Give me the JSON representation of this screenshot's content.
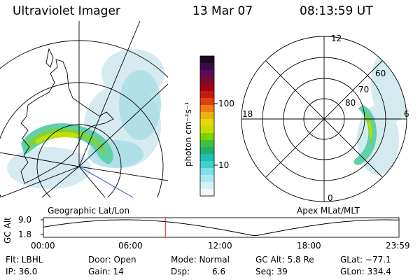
{
  "header": {
    "instrument": "Ultraviolet Imager",
    "date": "13 Mar 07",
    "time": "08:13:59 UT"
  },
  "colorbar": {
    "unit_label": "photon cm⁻²s⁻¹",
    "ticks": [
      "100",
      "10"
    ],
    "colors": [
      "#1a0a26",
      "#3b0a4a",
      "#5a0a5a",
      "#7a0a2a",
      "#a0001a",
      "#c81810",
      "#e04010",
      "#f07a10",
      "#f0b010",
      "#e8d800",
      "#c0e000",
      "#80d000",
      "#40c040",
      "#20b070",
      "#20c0b0",
      "#40d0d0",
      "#80e0e8",
      "#b0e8f0",
      "#d8f0f4",
      "#f0f8f8"
    ]
  },
  "left_panel": {
    "caption": "Geographic Lat/Lon"
  },
  "right_panel": {
    "caption": "Apex MLat/MLT",
    "mlt_labels": {
      "top": "12",
      "left": "18",
      "right": "6",
      "bottom": "0"
    },
    "lat_labels": [
      "60",
      "70",
      "80"
    ]
  },
  "timeline": {
    "ylabel": "GC Alt",
    "y_ticks": [
      "9.0",
      "1.8"
    ],
    "x_ticks": [
      "00:00",
      "06:00",
      "12:00",
      "18:00",
      "23:59"
    ],
    "current_fraction": 0.343
  },
  "info": {
    "flt": "Flt: LBHL",
    "ip": "IP: 36.0",
    "door": "Door: Open",
    "gain": "Gain: 14",
    "mode": "Mode: Normal",
    "dsp_label": "Dsp:",
    "dsp_value": "6.6",
    "gc_alt": "GC Alt: 5.8 Re",
    "seq": "Seq: 39",
    "glat": "GLat: −77.1",
    "glon": "GLon: 334.4"
  }
}
